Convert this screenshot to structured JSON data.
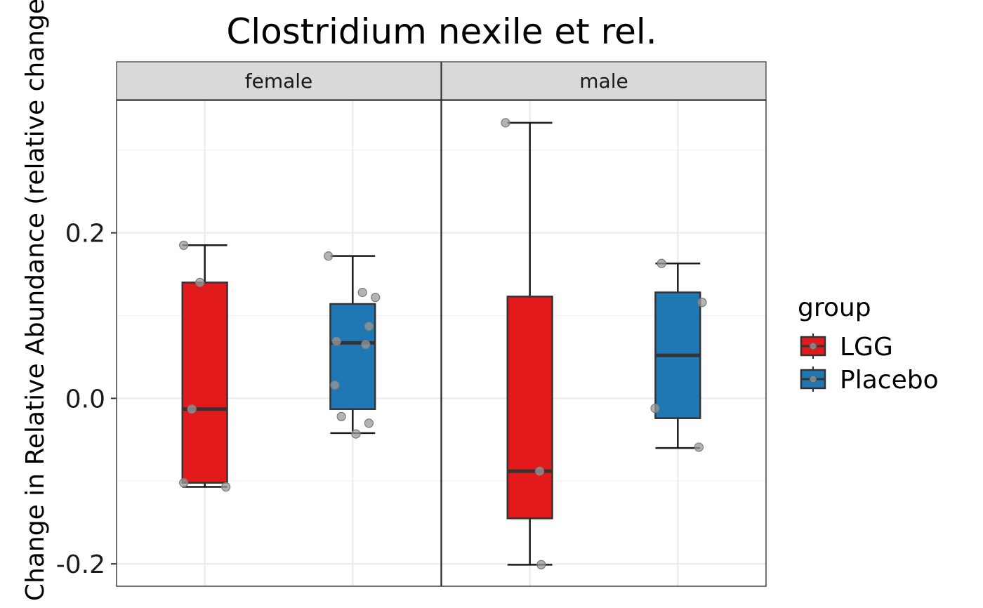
{
  "chart_data": {
    "type": "boxplot",
    "title": "Clostridium nexile et rel.",
    "ylabel": "Change in Relative Abundance (relative change)",
    "xlabel": "",
    "ylim": [
      -0.227,
      0.36
    ],
    "yticks": [
      -0.2,
      0.0,
      0.2
    ],
    "ytick_labels": [
      "-0.2",
      "0.0",
      "0.2"
    ],
    "minor_yticks": [
      -0.1,
      0.1,
      0.3
    ],
    "grid": true,
    "legend": {
      "title": "group",
      "position": "right",
      "entries": [
        {
          "label": "LGG",
          "color": "#E31A1C"
        },
        {
          "label": "Placebo",
          "color": "#1F78B4"
        }
      ]
    },
    "point_color": "#999999",
    "panels": [
      {
        "label": "female",
        "boxes": [
          {
            "group": "LGG",
            "lower_whisker": -0.107,
            "q1": -0.102,
            "median": -0.013,
            "q3": 0.14,
            "upper_whisker": 0.185,
            "points": [
              [
                -0.13,
                0.185
              ],
              [
                -0.03,
                0.14
              ],
              [
                -0.08,
                -0.013
              ],
              [
                -0.13,
                -0.102
              ],
              [
                0.13,
                -0.107
              ]
            ]
          },
          {
            "group": "Placebo",
            "lower_whisker": -0.042,
            "q1": -0.013,
            "median": 0.067,
            "q3": 0.114,
            "upper_whisker": 0.172,
            "points": [
              [
                -0.15,
                0.172
              ],
              [
                0.06,
                0.128
              ],
              [
                0.14,
                0.122
              ],
              [
                0.1,
                0.087
              ],
              [
                -0.1,
                0.069
              ],
              [
                0.08,
                0.065
              ],
              [
                -0.11,
                0.016
              ],
              [
                -0.07,
                -0.022
              ],
              [
                0.1,
                -0.03
              ],
              [
                0.02,
                -0.043
              ]
            ]
          }
        ]
      },
      {
        "label": "male",
        "boxes": [
          {
            "group": "LGG",
            "lower_whisker": -0.201,
            "q1": -0.145,
            "median": -0.088,
            "q3": 0.123,
            "upper_whisker": 0.333,
            "points": [
              [
                -0.15,
                0.333
              ],
              [
                0.06,
                -0.088
              ],
              [
                0.07,
                -0.201
              ]
            ]
          },
          {
            "group": "Placebo",
            "lower_whisker": -0.06,
            "q1": -0.024,
            "median": 0.052,
            "q3": 0.128,
            "upper_whisker": 0.163,
            "points": [
              [
                -0.1,
                0.163
              ],
              [
                0.15,
                0.116
              ],
              [
                -0.14,
                -0.012
              ],
              [
                0.13,
                -0.059
              ]
            ]
          }
        ]
      }
    ]
  }
}
